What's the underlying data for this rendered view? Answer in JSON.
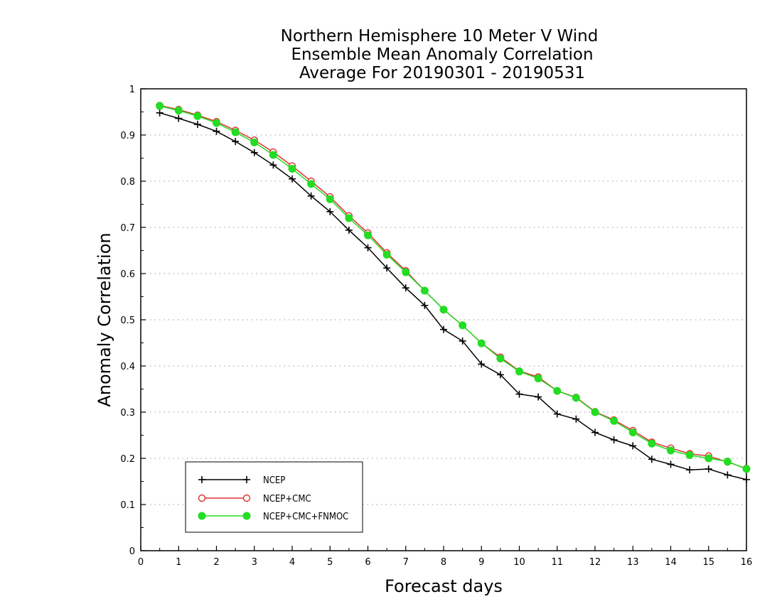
{
  "chart_data": {
    "type": "line",
    "title": [
      "Northern Hemisphere 10 Meter V Wind",
      "Ensemble Mean Anomaly Correlation",
      "Average For 20190301 - 20190531"
    ],
    "xlabel": "Forecast days",
    "ylabel": "Anomaly Correlation",
    "xlim": [
      0,
      16
    ],
    "ylim": [
      0,
      1
    ],
    "x_ticks": [
      0,
      1,
      2,
      3,
      4,
      5,
      6,
      7,
      8,
      9,
      10,
      11,
      12,
      13,
      14,
      15,
      16
    ],
    "y_ticks": [
      0,
      0.1,
      0.2,
      0.3,
      0.4,
      0.5,
      0.6,
      0.7,
      0.8,
      0.9,
      1
    ],
    "y_tick_labels": [
      "0",
      "0.1",
      "0.2",
      "0.3",
      "0.4",
      "0.5",
      "0.6",
      "0.7",
      "0.8",
      "0.9",
      "1"
    ],
    "grid": "horizontal dotted",
    "legend_position": "bottom-left",
    "x": [
      0.5,
      1,
      1.5,
      2,
      2.5,
      3,
      3.5,
      4,
      4.5,
      5,
      5.5,
      6,
      6.5,
      7,
      7.5,
      8,
      8.5,
      9,
      9.5,
      10,
      10.5,
      11,
      11.5,
      12,
      12.5,
      13,
      13.5,
      14,
      14.5,
      15,
      15.5,
      16
    ],
    "series": [
      {
        "name": "NCEP",
        "color": "#000000",
        "marker": "plus",
        "values": [
          0.948,
          0.936,
          0.923,
          0.908,
          0.886,
          0.862,
          0.835,
          0.805,
          0.768,
          0.734,
          0.694,
          0.656,
          0.612,
          0.569,
          0.531,
          0.479,
          0.454,
          0.404,
          0.381,
          0.339,
          0.333,
          0.296,
          0.285,
          0.256,
          0.24,
          0.227,
          0.198,
          0.187,
          0.175,
          0.177,
          0.164,
          0.154
        ]
      },
      {
        "name": "NCEP+CMC",
        "color": "#e03030",
        "marker": "open-circle",
        "values": [
          0.964,
          0.955,
          0.943,
          0.929,
          0.91,
          0.889,
          0.863,
          0.833,
          0.8,
          0.766,
          0.725,
          0.688,
          0.645,
          0.606,
          0.563,
          0.522,
          0.488,
          0.449,
          0.419,
          0.389,
          0.376,
          0.346,
          0.332,
          0.301,
          0.283,
          0.26,
          0.235,
          0.222,
          0.21,
          0.205,
          0.192,
          0.178
        ]
      },
      {
        "name": "NCEP+CMC+FNMOC",
        "color": "#22dd22",
        "marker": "filled-circle",
        "values": [
          0.963,
          0.953,
          0.941,
          0.926,
          0.906,
          0.884,
          0.857,
          0.827,
          0.794,
          0.761,
          0.72,
          0.683,
          0.641,
          0.603,
          0.563,
          0.522,
          0.488,
          0.449,
          0.416,
          0.388,
          0.373,
          0.346,
          0.331,
          0.3,
          0.281,
          0.256,
          0.232,
          0.217,
          0.207,
          0.2,
          0.193,
          0.177
        ]
      }
    ]
  }
}
